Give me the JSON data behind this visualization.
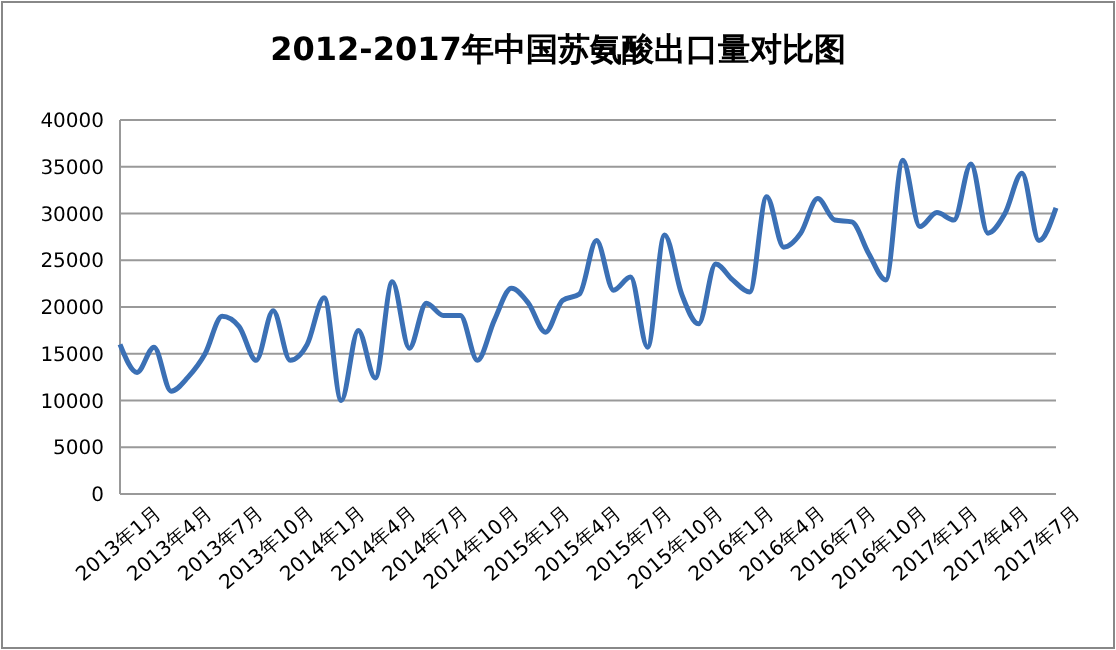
{
  "chart_data": {
    "type": "line",
    "title": "2012-2017年中国苏氨酸出口量对比图",
    "categories": [
      "2013年1月",
      null,
      null,
      "2013年4月",
      null,
      null,
      "2013年7月",
      null,
      null,
      "2013年10月",
      null,
      null,
      "2014年1月",
      null,
      null,
      "2014年4月",
      null,
      null,
      "2014年7月",
      null,
      null,
      "2014年10月",
      null,
      null,
      "2015年1月",
      null,
      null,
      "2015年4月",
      null,
      null,
      "2015年7月",
      null,
      null,
      "2015年10月",
      null,
      null,
      "2016年1月",
      null,
      null,
      "2016年4月",
      null,
      null,
      "2016年7月",
      null,
      null,
      "2016年10月",
      null,
      null,
      "2017年1月",
      null,
      null,
      "2017年4月",
      null,
      null,
      "2017年7月",
      null
    ],
    "series": [
      {
        "color": "#3b70b5",
        "values": [
          16000,
          13000,
          15700,
          11000,
          12500,
          15000,
          19000,
          17900,
          14300,
          19600,
          14300,
          16000,
          21000,
          10000,
          17500,
          12400,
          22700,
          15600,
          20400,
          19100,
          19100,
          14300,
          18600,
          22000,
          20400,
          17300,
          20700,
          21400,
          27100,
          21800,
          23200,
          15700,
          27700,
          21400,
          18200,
          24600,
          22900,
          21600,
          31800,
          26400,
          27900,
          31600,
          29300,
          29100,
          25700,
          22900,
          35700,
          28600,
          30100,
          29300,
          35300,
          27900,
          30000,
          34300,
          27100,
          30600
        ]
      }
    ],
    "ylim": [
      0,
      40000
    ],
    "yticks": [
      0,
      5000,
      10000,
      15000,
      20000,
      25000,
      30000,
      35000,
      40000
    ],
    "grid": "y",
    "marker": "none",
    "line_style": "solid"
  }
}
